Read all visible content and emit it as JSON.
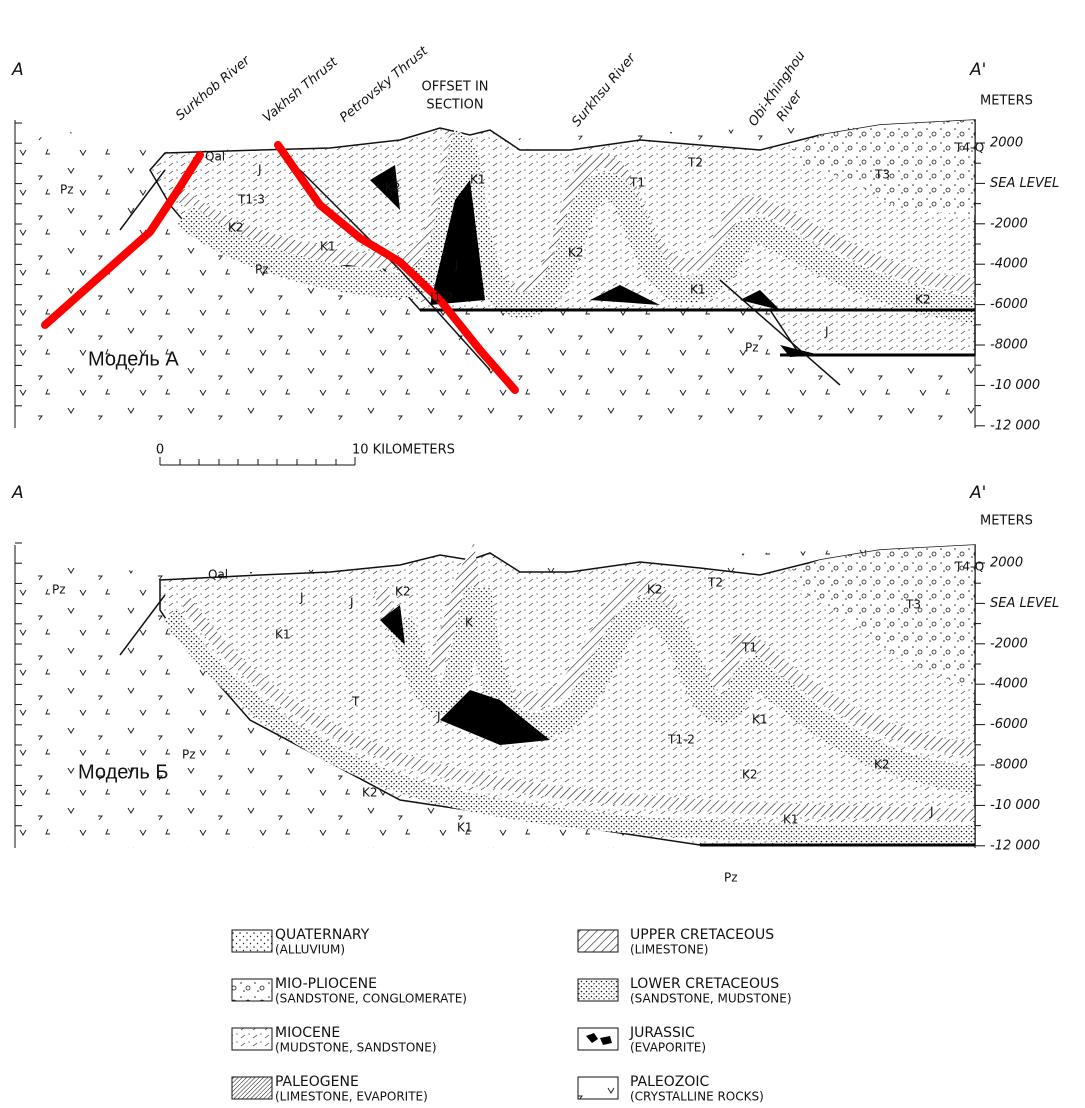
{
  "section_a": {
    "end_left": "A",
    "end_right": "A'",
    "callouts": [
      "Surkhob River",
      "Vakhsh Thrust",
      "Petrovsky Thrust",
      "Surkhsu River"
    ],
    "offset_note": [
      "OFFSET IN",
      "SECTION"
    ],
    "river_two_line": [
      "Obi-Khinghou",
      "River"
    ],
    "units": [
      "Pz",
      "Qal",
      "J",
      "T1-3",
      "K2",
      "K1",
      "Pz",
      "K2",
      "K1",
      "J",
      "J1-2",
      "T1",
      "T2",
      "K2",
      "K1",
      "T3",
      "T4-Q",
      "K2",
      "Pz",
      "J"
    ],
    "model": "Модель А"
  },
  "section_b": {
    "end_left": "A",
    "end_right": "A'",
    "units": [
      "Pz",
      "Qal",
      "J",
      "J",
      "K2",
      "K1",
      "K",
      "T",
      "J",
      "K2",
      "T2",
      "T1",
      "T3",
      "T4-Q",
      "K1",
      "K2",
      "T1-2",
      "K2",
      "K1",
      "J",
      "Pz",
      "K2",
      "K1",
      "Pz"
    ],
    "model": "Модель Б"
  },
  "depth_axis": {
    "unit": "METERS",
    "labels": [
      "2000",
      "SEA LEVEL",
      "-2000",
      "-4000",
      "-6000",
      "-8000",
      "-10 000",
      "-12 000"
    ]
  },
  "scale": {
    "zero": "0",
    "label": "10 KILOMETERS"
  },
  "legend": [
    {
      "title": "QUATERNARY",
      "subtitle": "(ALLUVIUM)"
    },
    {
      "title": "MIO-PLIOCENE",
      "subtitle": "(SANDSTONE, CONGLOMERATE)"
    },
    {
      "title": "MIOCENE",
      "subtitle": "(MUDSTONE, SANDSTONE)"
    },
    {
      "title": "PALEOGENE",
      "subtitle": "(LIMESTONE, EVAPORITE)"
    },
    {
      "title": "UPPER CRETACEOUS",
      "subtitle": "(LIMESTONE)"
    },
    {
      "title": "LOWER CRETACEOUS",
      "subtitle": "(SANDSTONE, MUDSTONE)"
    },
    {
      "title": "JURASSIC",
      "subtitle": "(EVAPORITE)"
    },
    {
      "title": "PALEOZOIC",
      "subtitle": "(CRYSTALLINE ROCKS)"
    }
  ]
}
